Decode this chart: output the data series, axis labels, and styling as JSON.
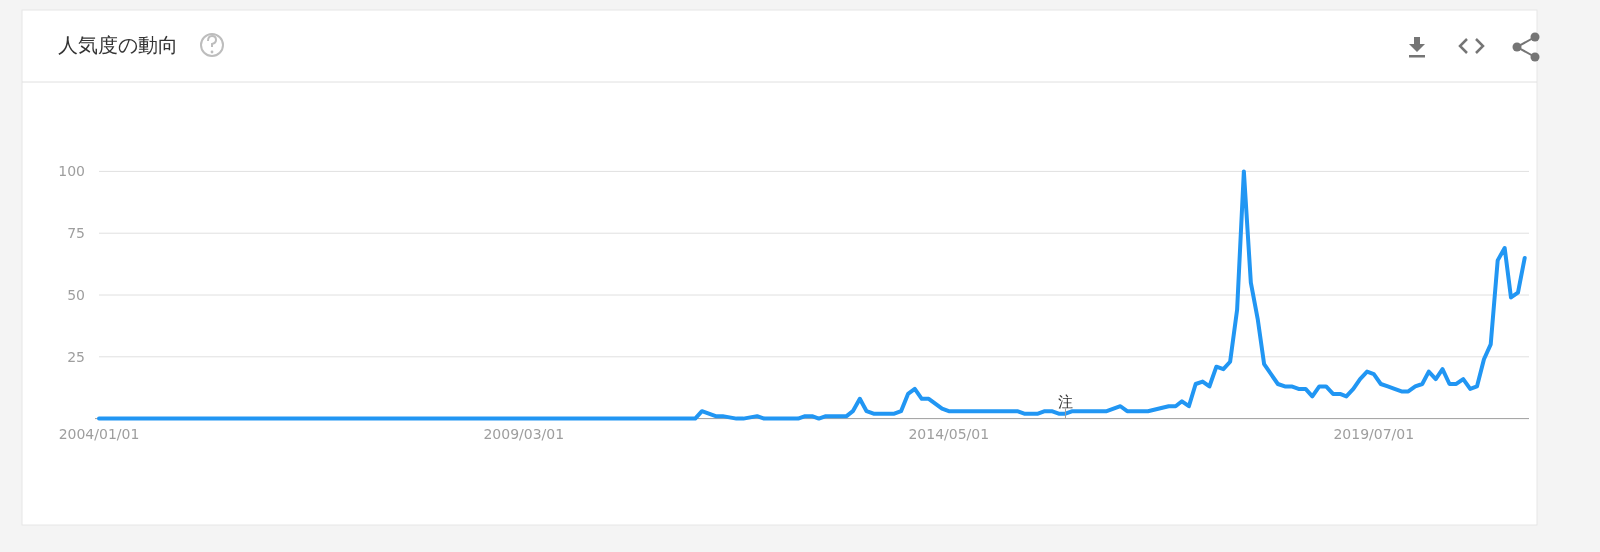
{
  "chart_data": {
    "type": "line",
    "title": "人気度の動向",
    "xlim": [
      "2004-01-01",
      "2021-05-20"
    ],
    "ylim": [
      0,
      100
    ],
    "xticks": [
      {
        "value": "2004-01-01",
        "label": "2004/01/01"
      },
      {
        "value": "2009-03-01",
        "label": "2009/03/01"
      },
      {
        "value": "2014-05-01",
        "label": "2014/05/01"
      },
      {
        "value": "2019-07-01",
        "label": "2019/07/01"
      }
    ],
    "yticks": [
      25,
      50,
      75,
      100
    ],
    "grid": "y",
    "line_style": "solid",
    "annotations": [
      {
        "text": "注",
        "x": "2015-10",
        "y": 0
      }
    ],
    "series": [
      {
        "color": "#2196f3",
        "x": [
          "2004-01",
          "2011-04",
          "2011-05",
          "2011-07",
          "2011-08",
          "2011-10",
          "2011-11",
          "2012-01",
          "2012-02",
          "2012-07",
          "2012-08",
          "2012-09",
          "2012-10",
          "2012-11",
          "2013-02",
          "2013-03",
          "2013-04",
          "2013-05",
          "2013-06",
          "2013-09",
          "2013-10",
          "2013-11",
          "2013-12",
          "2014-01",
          "2014-02",
          "2014-04",
          "2014-05",
          "2015-03",
          "2015-04",
          "2015-06",
          "2015-07",
          "2015-08",
          "2015-09",
          "2015-10",
          "2015-11",
          "2016-04",
          "2016-06",
          "2016-07",
          "2016-10",
          "2017-01",
          "2017-02",
          "2017-03",
          "2017-04",
          "2017-05",
          "2017-06",
          "2017-07",
          "2017-08",
          "2017-09",
          "2017-10",
          "2017-11",
          "2017-12",
          "2018-01",
          "2018-02",
          "2018-03",
          "2018-05",
          "2018-06",
          "2018-07",
          "2018-08",
          "2018-09",
          "2018-10",
          "2018-11",
          "2018-12",
          "2019-01",
          "2019-02",
          "2019-03",
          "2019-04",
          "2019-05",
          "2019-06",
          "2019-07",
          "2019-08",
          "2019-09",
          "2019-10",
          "2019-11",
          "2019-12",
          "2020-01",
          "2020-02",
          "2020-03",
          "2020-04",
          "2020-05",
          "2020-06",
          "2020-07",
          "2020-08",
          "2020-09",
          "2020-10",
          "2020-11",
          "2020-12",
          "2021-01",
          "2021-02",
          "2021-03",
          "2021-04",
          "2021-05"
        ],
        "values": [
          0,
          0,
          3,
          1,
          1,
          0,
          0,
          1,
          0,
          0,
          1,
          1,
          0,
          1,
          1,
          3,
          8,
          3,
          2,
          2,
          3,
          10,
          12,
          8,
          8,
          4,
          3,
          3,
          2,
          2,
          3,
          3,
          2,
          2,
          3,
          3,
          5,
          3,
          3,
          5,
          5,
          7,
          5,
          14,
          15,
          13,
          21,
          20,
          23,
          44,
          100,
          55,
          40,
          22,
          14,
          13,
          13,
          12,
          12,
          9,
          13,
          13,
          10,
          10,
          9,
          12,
          16,
          19,
          18,
          14,
          13,
          12,
          11,
          11,
          13,
          14,
          19,
          16,
          20,
          14,
          14,
          16,
          12,
          13,
          24,
          30,
          64,
          69,
          49,
          51,
          65
        ]
      }
    ]
  }
}
